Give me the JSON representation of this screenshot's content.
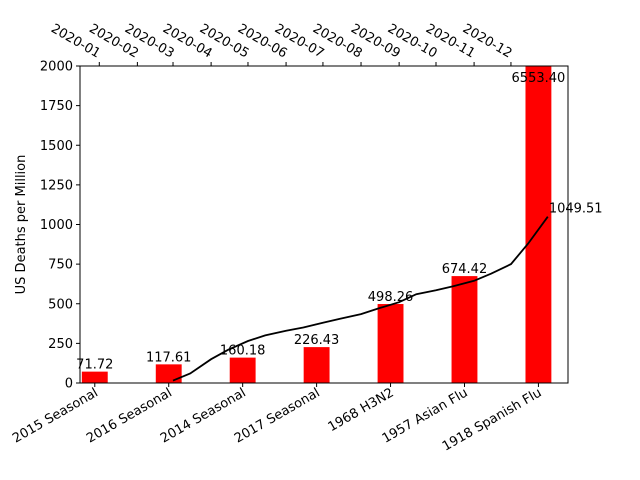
{
  "chart_data": {
    "type": "bar",
    "title": "",
    "ylabel": "US Deaths per Million",
    "ylim": [
      0,
      2000
    ],
    "yticks": [
      0,
      250,
      500,
      750,
      1000,
      1250,
      1500,
      1750,
      2000
    ],
    "bar_color": "#ff0000",
    "line_color": "#000000",
    "categories": [
      "2015 Seasonal",
      "2016 Seasonal",
      "2014 Seasonal",
      "2017 Seasonal",
      "1968 H3N2",
      "1957 Asian Flu",
      "1918 Spanish Flu"
    ],
    "values": [
      71.72,
      117.61,
      160.18,
      226.43,
      498.26,
      674.42,
      6553.4
    ],
    "value_labels": [
      "71.72",
      "117.61",
      "160.18",
      "226.43",
      "498.26",
      "674.42",
      "6553.40"
    ],
    "line_series": {
      "top_axis_ticks": [
        "2020-01",
        "2020-02",
        "2020-03",
        "2020-04",
        "2020-05",
        "2020-06",
        "2020-07",
        "2020-08",
        "2020-09",
        "2020-10",
        "2020-11",
        "2020-12"
      ],
      "x": [
        "2020-03-01",
        "2020-03-15",
        "2020-04-01",
        "2020-04-15",
        "2020-05-01",
        "2020-05-15",
        "2020-06-01",
        "2020-06-15",
        "2020-07-01",
        "2020-07-15",
        "2020-08-01",
        "2020-08-15",
        "2020-09-01",
        "2020-09-15",
        "2020-10-01",
        "2020-10-15",
        "2020-11-01",
        "2020-11-15",
        "2020-12-01",
        "2020-12-15",
        "2020-12-31"
      ],
      "y": [
        15,
        60,
        150,
        210,
        265,
        300,
        330,
        350,
        380,
        405,
        435,
        470,
        510,
        560,
        585,
        610,
        645,
        690,
        750,
        880,
        1049.51
      ],
      "end_label": "1049.51"
    }
  }
}
